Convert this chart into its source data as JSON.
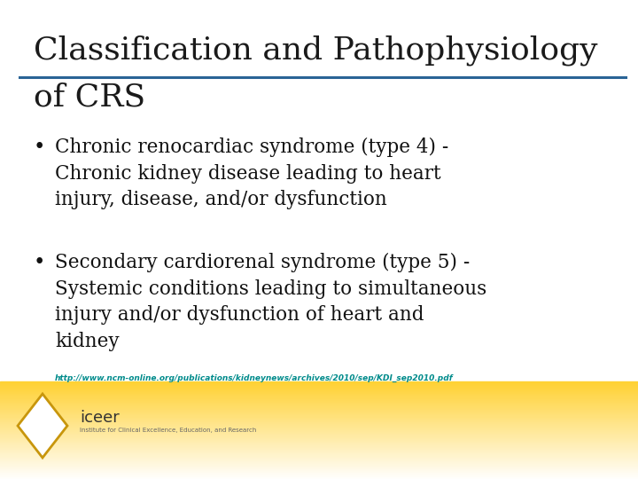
{
  "title_line1": "Classification and Pathophysiology",
  "title_line2": "of CRS",
  "title_fontsize": 26,
  "title_color": "#1a1a1a",
  "separator_color": "#2a6496",
  "bullet1_lines": [
    "Chronic renocardiac syndrome (type 4) -",
    "Chronic kidney disease leading to heart",
    "injury, disease, and/or dysfunction"
  ],
  "bullet2_lines": [
    "Secondary cardiorenal syndrome (type 5) -",
    "Systemic conditions leading to simultaneous",
    "injury and/or dysfunction of heart and",
    "kidney"
  ],
  "bullet_fontsize": 15.5,
  "bullet_color": "#111111",
  "url_text": "http://www.ncm-online.org/publications/kidneynews/archives/2010/sep/KDI_sep2010.pdf",
  "url_color": "#008b8b",
  "url_fontsize": 6.5,
  "footer_text": "iceer",
  "footer_sub": "Institute for Clinical Excellence, Education, and Research",
  "diamond_color": "#c8960c",
  "logo_text_color": "#333333"
}
